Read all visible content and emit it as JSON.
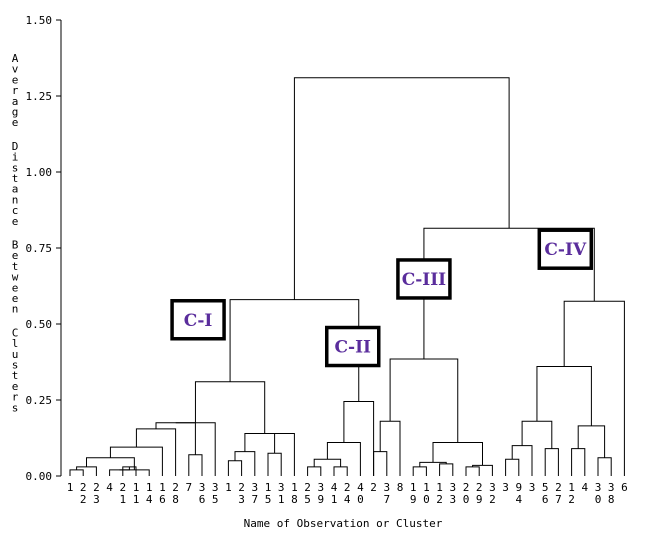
{
  "chart_data": {
    "type": "dendrogram",
    "xlabel": "Name of Observation or Cluster",
    "ylabel": "Average Distance Between Clusters",
    "ylim": [
      0,
      1.5
    ],
    "yticks": [
      "0.00",
      "0.25",
      "0.50",
      "0.75",
      "1.00",
      "1.25",
      "1.50"
    ],
    "leaves": [
      [
        "1"
      ],
      [
        "2",
        "2"
      ],
      [
        "2",
        "3"
      ],
      [
        "4"
      ],
      [
        "2",
        "1"
      ],
      [
        "1",
        "1"
      ],
      [
        "1",
        "4"
      ],
      [
        "1",
        "6"
      ],
      [
        "2",
        "8"
      ],
      [
        "7"
      ],
      [
        "3",
        "6"
      ],
      [
        "3",
        "5"
      ],
      [
        "1"
      ],
      [
        "2",
        "3"
      ],
      [
        "3",
        "7"
      ],
      [
        "1",
        "5"
      ],
      [
        "3",
        "1"
      ],
      [
        "1",
        "8"
      ],
      [
        "2",
        "5"
      ],
      [
        "3",
        "9"
      ],
      [
        "4",
        "1"
      ],
      [
        "2",
        "4"
      ],
      [
        "4",
        "0"
      ],
      [
        "2"
      ],
      [
        "3",
        "7"
      ],
      [
        "8"
      ],
      [
        "1",
        "9"
      ],
      [
        "1",
        "0"
      ],
      [
        "1",
        "2"
      ],
      [
        "3",
        "3"
      ],
      [
        "2",
        "0"
      ],
      [
        "2",
        "9"
      ],
      [
        "3",
        "2"
      ],
      [
        "3"
      ],
      [
        "9",
        "4"
      ],
      [
        "3"
      ],
      [
        "5",
        "6"
      ],
      [
        "2",
        "7"
      ],
      [
        "1",
        "2"
      ],
      [
        "4"
      ],
      [
        "3",
        "0"
      ],
      [
        "3",
        "8"
      ],
      [
        "6"
      ]
    ],
    "merges": [
      {
        "left": "L0",
        "right": "L1",
        "height": 0.02
      },
      {
        "left": "M0",
        "right": "L2",
        "height": 0.03
      },
      {
        "left": "L4",
        "right": "L5",
        "height": 0.03
      },
      {
        "left": "L3",
        "right": "M2",
        "height": 0.02
      },
      {
        "left": "M3",
        "right": "L6",
        "height": 0.02
      },
      {
        "left": "M1",
        "right": "M4",
        "height": 0.06
      },
      {
        "left": "M5",
        "right": "L7",
        "height": 0.095
      },
      {
        "left": "M6",
        "right": "L8",
        "height": 0.155
      },
      {
        "left": "L9",
        "right": "L10",
        "height": 0.07
      },
      {
        "left": "M7",
        "right": "M8",
        "height": 0.175
      },
      {
        "left": "M9",
        "right": "L11",
        "height": 0.175
      },
      {
        "left": "L12",
        "right": "L13",
        "height": 0.05
      },
      {
        "left": "M11",
        "right": "L14",
        "height": 0.08
      },
      {
        "left": "L15",
        "right": "L16",
        "height": 0.075
      },
      {
        "left": "M13",
        "right": "L17",
        "height": 0.14
      },
      {
        "left": "M12",
        "right": "M14",
        "height": 0.14
      },
      {
        "left": "M10",
        "right": "M15",
        "height": 0.31
      },
      {
        "left": "L18",
        "right": "L19",
        "height": 0.03
      },
      {
        "left": "L20",
        "right": "L21",
        "height": 0.03
      },
      {
        "left": "M17",
        "right": "M18",
        "height": 0.055
      },
      {
        "left": "M19",
        "right": "L22",
        "height": 0.11
      },
      {
        "left": "M20",
        "right": "L23",
        "height": 0.245
      },
      {
        "left": "M16",
        "right": "M21",
        "height": 0.58
      },
      {
        "left": "L23",
        "right": "L24",
        "height": 0.08
      },
      {
        "left": "M23",
        "right": "L25",
        "height": 0.18
      },
      {
        "left": "L26",
        "right": "L27",
        "height": 0.03
      },
      {
        "left": "L28",
        "right": "L29",
        "height": 0.04
      },
      {
        "left": "M25",
        "right": "M26",
        "height": 0.045
      },
      {
        "left": "L30",
        "right": "L31",
        "height": 0.03
      },
      {
        "left": "M28",
        "right": "L32",
        "height": 0.035
      },
      {
        "left": "M27",
        "right": "M29",
        "height": 0.11
      },
      {
        "left": "M24",
        "right": "M30",
        "height": 0.385
      },
      {
        "left": "L33",
        "right": "L34",
        "height": 0.055
      },
      {
        "left": "M32",
        "right": "L35",
        "height": 0.1
      },
      {
        "left": "L36",
        "right": "L37",
        "height": 0.09
      },
      {
        "left": "M33",
        "right": "M34",
        "height": 0.18
      },
      {
        "left": "L38",
        "right": "L39",
        "height": 0.09
      },
      {
        "left": "L40",
        "right": "L41",
        "height": 0.06
      },
      {
        "left": "M36",
        "right": "M37",
        "height": 0.165
      },
      {
        "left": "M35",
        "right": "M38",
        "height": 0.36
      },
      {
        "left": "M39",
        "right": "L42",
        "height": 0.575
      },
      {
        "left": "M31",
        "right": "M40",
        "height": 0.815
      },
      {
        "left": "M22",
        "right": "M41",
        "height": 1.31
      }
    ],
    "cluster_labels": [
      {
        "label": "C-I",
        "node": "M16"
      },
      {
        "label": "C-II",
        "node": "M21"
      },
      {
        "label": "C-III",
        "node": "M31"
      },
      {
        "label": "C-IV",
        "node": "M40"
      }
    ]
  }
}
